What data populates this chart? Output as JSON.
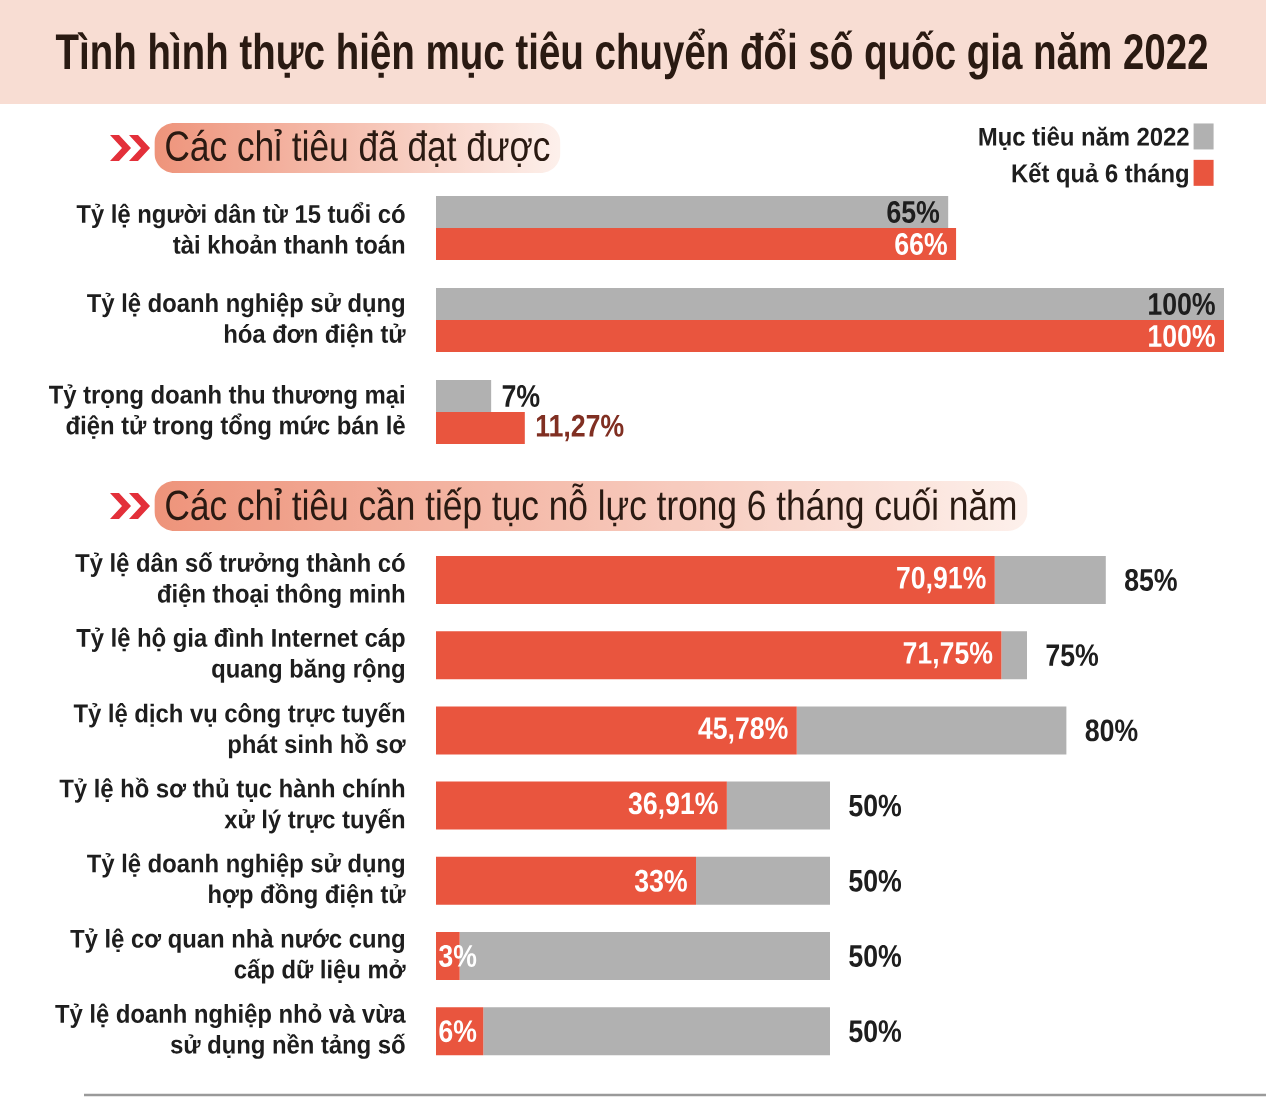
{
  "chart_data": [
    {
      "type": "bar",
      "orientation": "horizontal",
      "title": "Tình hình thực hiện mục tiêu chuyển đổi số quốc gia năm 2022",
      "subtitle": "Các chỉ tiêu đã đạt được",
      "legend": "top right",
      "categories": [
        "Tỷ lệ người dân từ 15 tuổi có tài khoản thanh toán",
        "Tỷ lệ doanh nghiệp sử dụng hóa đơn điện tử",
        "Tỷ trọng doanh thu thương mại điện tử trong tổng mức bán lẻ"
      ],
      "series": [
        {
          "name": "Mục tiêu năm 2022",
          "color": "#b1b1b1",
          "values": [
            65,
            100,
            7
          ],
          "value_labels": [
            "65%",
            "100%",
            "7%"
          ]
        },
        {
          "name": "Kết quả 6 tháng",
          "color": "#e9553e",
          "values": [
            66,
            100,
            11.27
          ],
          "value_labels": [
            "66%",
            "100%",
            "11,27%"
          ]
        }
      ]
    },
    {
      "type": "bar",
      "orientation": "horizontal",
      "stacked": true,
      "title": "Các chỉ tiêu cần tiếp tục nỗ lực trong 6 tháng cuối năm",
      "categories": [
        "Tỷ lệ dân số trưởng thành có điện thoại thông minh",
        "Tỷ lệ hộ gia đình Internet cáp quang băng rộng",
        "Tỷ lệ dịch vụ công trực tuyến phát sinh hồ sơ",
        "Tỷ lệ hồ sơ thủ tục hành chính xử lý trực tuyến",
        "Tỷ lệ doanh nghiệp sử dụng hợp đồng điện tử",
        "Tỷ lệ cơ quan nhà nước cung cấp dữ liệu mở",
        "Tỷ lệ doanh nghiệp nhỏ và vừa sử dụng nền tảng số"
      ],
      "series": [
        {
          "color": "#e9553e",
          "values": [
            70.91,
            71.75,
            45.78,
            36.91,
            33,
            3,
            6
          ],
          "value_labels": [
            "70,91%",
            "71,75%",
            "45,78%",
            "36,91%",
            "33%",
            "3%",
            "6%"
          ]
        },
        {
          "color": "#b1b1b1",
          "values": [
            14.09,
            3.25,
            34.22,
            13.09,
            17,
            47,
            44
          ]
        }
      ],
      "totals": [
        "85%",
        "75%",
        "80%",
        "50%",
        "50%",
        "50%",
        "50%"
      ]
    }
  ]
}
